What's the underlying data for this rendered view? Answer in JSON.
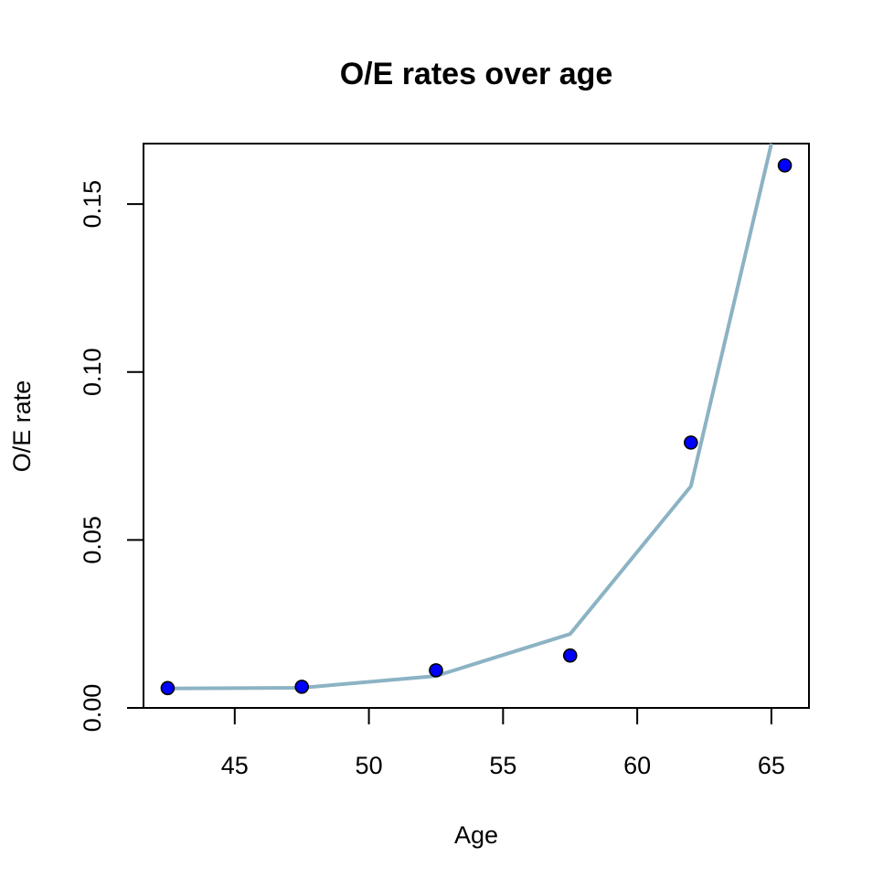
{
  "chart_data": {
    "type": "scatter",
    "title": "O/E rates over age",
    "xlabel": "Age",
    "ylabel": "O/E rate",
    "xlim": [
      41.6,
      66.4
    ],
    "ylim": [
      0.0,
      0.168
    ],
    "x_ticks": [
      45,
      50,
      55,
      60,
      65
    ],
    "y_ticks": [
      0.0,
      0.05,
      0.1,
      0.15
    ],
    "x_tick_labels": [
      "45",
      "50",
      "55",
      "60",
      "65"
    ],
    "y_tick_labels": [
      "0.00",
      "0.05",
      "0.10",
      "0.15"
    ],
    "grid": false,
    "legend": "none",
    "series": [
      {
        "type": "scatter",
        "x": [
          42.5,
          47.5,
          52.5,
          57.5,
          62,
          65.5
        ],
        "y": [
          0.0059,
          0.0063,
          0.0112,
          0.0156,
          0.079,
          0.1615
        ],
        "color": "#0000ff",
        "edge_color": "#000000"
      },
      {
        "type": "line",
        "x": [
          42.5,
          47.5,
          52.5,
          57.5,
          62,
          65
        ],
        "y": [
          0.0058,
          0.006,
          0.0095,
          0.022,
          0.066,
          0.168
        ],
        "color": "#8cb3c4"
      }
    ]
  }
}
